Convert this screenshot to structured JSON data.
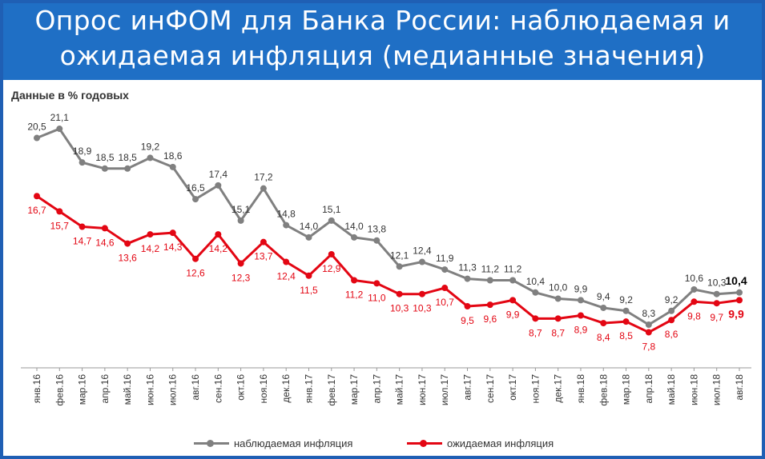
{
  "header": {
    "title_line1": "Опрос инФОМ для Банка России: наблюдаемая и",
    "title_line2": "ожидаемая инфляция (медианные значения)"
  },
  "subtitle": "Данные в % годовых",
  "colors": {
    "banner": "#1f6fc5",
    "observed": "#808080",
    "expected": "#e30613",
    "text": "#333333"
  },
  "legend": {
    "observed_label": "наблюдаемая инфляция",
    "expected_label": "ожидаемая инфляция"
  },
  "chart_data": {
    "type": "line",
    "title": "",
    "xlabel": "",
    "ylabel": "",
    "grid": false,
    "legend_position": "bottom",
    "ylim": [
      6,
      22.2
    ],
    "categories": [
      "янв.16",
      "фев.16",
      "мар.16",
      "апр.16",
      "май.16",
      "июн.16",
      "июл.16",
      "авг.16",
      "сен.16",
      "окт.16",
      "ноя.16",
      "дек.16",
      "янв.17",
      "фев.17",
      "мар.17",
      "апр.17",
      "май.17",
      "июн.17",
      "июл.17",
      "авг.17",
      "сен.17",
      "окт.17",
      "ноя.17",
      "дек.17",
      "янв.18",
      "фев.18",
      "мар.18",
      "апр.18",
      "май.18",
      "июн.18",
      "июл.18",
      "авг.18"
    ],
    "series": [
      {
        "name": "наблюдаемая инфляция",
        "color": "#808080",
        "values": [
          20.5,
          21.1,
          18.9,
          18.5,
          18.5,
          19.2,
          18.6,
          16.5,
          17.4,
          15.1,
          17.2,
          14.8,
          14.0,
          15.1,
          14.0,
          13.8,
          12.1,
          12.4,
          11.9,
          11.3,
          11.2,
          11.2,
          10.4,
          10.0,
          9.9,
          9.4,
          9.2,
          8.3,
          9.2,
          10.6,
          10.3,
          10.4
        ],
        "labels": [
          "20,5",
          "21,1",
          "18,9",
          "18,5",
          "18,5",
          "19,2",
          "18,6",
          "16,5",
          "17,4",
          "15,1",
          "17,2",
          "14,8",
          "14,0",
          "15,1",
          "14,0",
          "13,8",
          "12,1",
          "12,4",
          "11,9",
          "11,3",
          "11,2",
          "11,2",
          "10,4",
          "10,0",
          "9,9",
          "9,4",
          "9,2",
          "8,3",
          "9,2",
          "10,6",
          "10,3",
          "10,4"
        ]
      },
      {
        "name": "ожидаемая инфляция",
        "color": "#e30613",
        "values": [
          16.7,
          15.7,
          14.7,
          14.6,
          13.6,
          14.2,
          14.3,
          12.6,
          14.2,
          12.3,
          13.7,
          12.4,
          11.5,
          12.9,
          11.2,
          11.0,
          10.3,
          10.3,
          10.7,
          9.5,
          9.6,
          9.9,
          8.7,
          8.7,
          8.9,
          8.4,
          8.5,
          7.8,
          8.6,
          9.8,
          9.7,
          9.9
        ],
        "labels": [
          "16,7",
          "15,7",
          "14,7",
          "14,6",
          "13,6",
          "14,2",
          "14,3",
          "12,6",
          "14,2",
          "12,3",
          "13,7",
          "12,4",
          "11,5",
          "12,9",
          "11,2",
          "11,0",
          "10,3",
          "10,3",
          "10,7",
          "9,5",
          "9,6",
          "9,9",
          "8,7",
          "8,7",
          "8,9",
          "8,4",
          "8,5",
          "7,8",
          "8,6",
          "9,8",
          "9,7",
          "9,9"
        ]
      }
    ]
  }
}
